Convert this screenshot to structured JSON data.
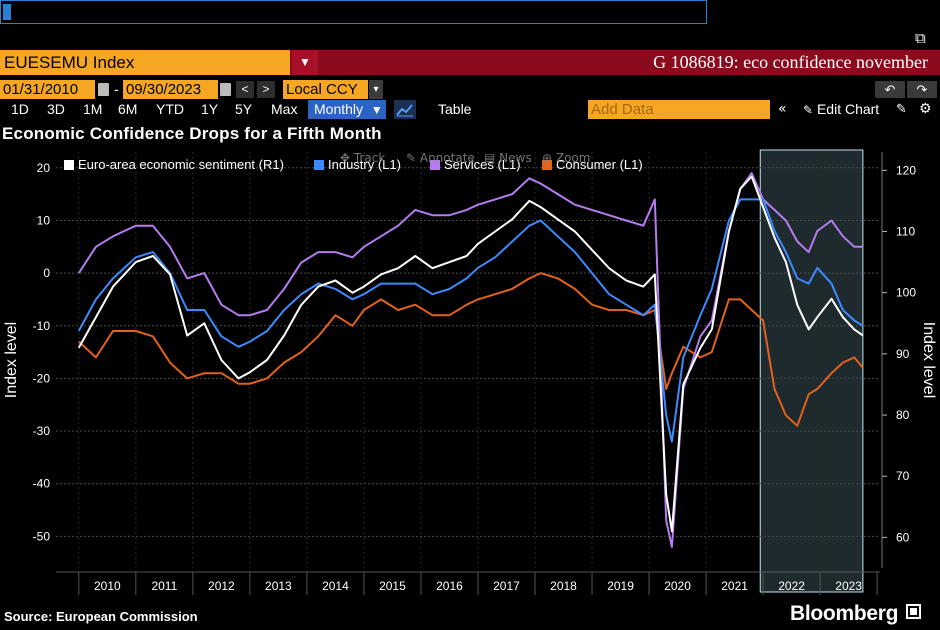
{
  "command_line": {
    "value": ""
  },
  "security": {
    "ticker": "EUESEMU Index",
    "function_title": "G 1086819: eco confidence november"
  },
  "dates": {
    "start": "01/31/2010",
    "separator": "-",
    "end": "09/30/2023",
    "currency": "Local CCY"
  },
  "toolbar": {
    "periods": [
      "1D",
      "3D",
      "1M",
      "6M",
      "YTD",
      "1Y",
      "5Y",
      "Max"
    ],
    "frequency": "Monthly",
    "frequency_arrow": "▼",
    "table_label": "Table",
    "add_data_placeholder": "Add Data",
    "collapse_glyph": "«",
    "edit_chart_label": "Edit Chart"
  },
  "overlay_tools": [
    "Track",
    "Annotate",
    "News",
    "Zoom"
  ],
  "footer": {
    "source": "Source: European Commission",
    "brand": "Bloomberg"
  },
  "chart_data": {
    "type": "line",
    "title": "Economic Confidence Drops for a Fifth Month",
    "ylabel_left": "Index level",
    "ylabel_right": "Index level",
    "ylim_left": [
      -56,
      23
    ],
    "ylim_right": [
      55,
      123
    ],
    "yticks_left": [
      20,
      10,
      0,
      -10,
      -20,
      -30,
      -40,
      -50
    ],
    "yticks_right": [
      120,
      110,
      100,
      90,
      80,
      70,
      60
    ],
    "x_tick_labels": [
      "2010",
      "2011",
      "2012",
      "2013",
      "2014",
      "2015",
      "2016",
      "2017",
      "2018",
      "2019",
      "2020",
      "2021",
      "2022",
      "2023"
    ],
    "x_range": [
      2009.6,
      2024.05
    ],
    "shaded_region": [
      2021.95,
      2023.75
    ],
    "grid": true,
    "legend_position": "top-left",
    "series": [
      {
        "name": "Euro-area economic sentiment (R1)",
        "axis": "right",
        "color": "#ffffff",
        "points": [
          [
            2010.0,
            91
          ],
          [
            2010.3,
            96
          ],
          [
            2010.6,
            101
          ],
          [
            2011.0,
            105
          ],
          [
            2011.3,
            106
          ],
          [
            2011.6,
            103
          ],
          [
            2011.9,
            93
          ],
          [
            2012.2,
            95
          ],
          [
            2012.5,
            89
          ],
          [
            2012.8,
            86
          ],
          [
            2013.0,
            87
          ],
          [
            2013.3,
            89
          ],
          [
            2013.6,
            93
          ],
          [
            2013.9,
            98
          ],
          [
            2014.2,
            101
          ],
          [
            2014.5,
            102
          ],
          [
            2014.8,
            100
          ],
          [
            2015.0,
            101
          ],
          [
            2015.3,
            103
          ],
          [
            2015.6,
            104
          ],
          [
            2015.9,
            106
          ],
          [
            2016.2,
            104
          ],
          [
            2016.5,
            105
          ],
          [
            2016.8,
            106
          ],
          [
            2017.0,
            108
          ],
          [
            2017.3,
            110
          ],
          [
            2017.6,
            112
          ],
          [
            2017.9,
            115
          ],
          [
            2018.1,
            114
          ],
          [
            2018.4,
            112
          ],
          [
            2018.7,
            110
          ],
          [
            2019.0,
            107
          ],
          [
            2019.3,
            104
          ],
          [
            2019.6,
            102
          ],
          [
            2019.9,
            101
          ],
          [
            2020.1,
            103
          ],
          [
            2020.3,
            67
          ],
          [
            2020.4,
            61
          ],
          [
            2020.6,
            85
          ],
          [
            2020.9,
            91
          ],
          [
            2021.1,
            94
          ],
          [
            2021.4,
            110
          ],
          [
            2021.6,
            117
          ],
          [
            2021.8,
            119
          ],
          [
            2022.0,
            114
          ],
          [
            2022.2,
            109
          ],
          [
            2022.4,
            105
          ],
          [
            2022.6,
            98
          ],
          [
            2022.8,
            94
          ],
          [
            2022.95,
            96
          ],
          [
            2023.2,
            99
          ],
          [
            2023.4,
            96
          ],
          [
            2023.6,
            94
          ],
          [
            2023.75,
            93
          ]
        ]
      },
      {
        "name": "Industry (L1)",
        "axis": "left",
        "color": "#3b8bff",
        "points": [
          [
            2010.0,
            -11
          ],
          [
            2010.3,
            -5
          ],
          [
            2010.6,
            -1
          ],
          [
            2011.0,
            3
          ],
          [
            2011.3,
            4
          ],
          [
            2011.6,
            0
          ],
          [
            2011.9,
            -7
          ],
          [
            2012.2,
            -7
          ],
          [
            2012.5,
            -12
          ],
          [
            2012.8,
            -14
          ],
          [
            2013.0,
            -13
          ],
          [
            2013.3,
            -11
          ],
          [
            2013.6,
            -7
          ],
          [
            2013.9,
            -4
          ],
          [
            2014.2,
            -2
          ],
          [
            2014.5,
            -3
          ],
          [
            2014.8,
            -5
          ],
          [
            2015.0,
            -4
          ],
          [
            2015.3,
            -2
          ],
          [
            2015.6,
            -2
          ],
          [
            2015.9,
            -2
          ],
          [
            2016.2,
            -4
          ],
          [
            2016.5,
            -3
          ],
          [
            2016.8,
            -1
          ],
          [
            2017.0,
            1
          ],
          [
            2017.3,
            3
          ],
          [
            2017.6,
            6
          ],
          [
            2017.9,
            9
          ],
          [
            2018.1,
            10
          ],
          [
            2018.4,
            7
          ],
          [
            2018.7,
            4
          ],
          [
            2019.0,
            0
          ],
          [
            2019.3,
            -4
          ],
          [
            2019.6,
            -6
          ],
          [
            2019.9,
            -8
          ],
          [
            2020.1,
            -6
          ],
          [
            2020.3,
            -27
          ],
          [
            2020.4,
            -32
          ],
          [
            2020.6,
            -16
          ],
          [
            2020.9,
            -8
          ],
          [
            2021.1,
            -3
          ],
          [
            2021.4,
            10
          ],
          [
            2021.6,
            14
          ],
          [
            2021.8,
            14
          ],
          [
            2022.0,
            14
          ],
          [
            2022.2,
            8
          ],
          [
            2022.4,
            4
          ],
          [
            2022.6,
            -1
          ],
          [
            2022.8,
            -2
          ],
          [
            2022.95,
            1
          ],
          [
            2023.2,
            -2
          ],
          [
            2023.4,
            -7
          ],
          [
            2023.6,
            -9
          ],
          [
            2023.75,
            -10
          ]
        ]
      },
      {
        "name": "Services (L1)",
        "axis": "left",
        "color": "#b57cf0",
        "points": [
          [
            2010.0,
            0
          ],
          [
            2010.3,
            5
          ],
          [
            2010.6,
            7
          ],
          [
            2011.0,
            9
          ],
          [
            2011.3,
            9
          ],
          [
            2011.6,
            5
          ],
          [
            2011.9,
            -1
          ],
          [
            2012.2,
            0
          ],
          [
            2012.5,
            -6
          ],
          [
            2012.8,
            -8
          ],
          [
            2013.0,
            -8
          ],
          [
            2013.3,
            -7
          ],
          [
            2013.6,
            -3
          ],
          [
            2013.9,
            2
          ],
          [
            2014.2,
            4
          ],
          [
            2014.5,
            4
          ],
          [
            2014.8,
            3
          ],
          [
            2015.0,
            5
          ],
          [
            2015.3,
            7
          ],
          [
            2015.6,
            9
          ],
          [
            2015.9,
            12
          ],
          [
            2016.2,
            11
          ],
          [
            2016.5,
            11
          ],
          [
            2016.8,
            12
          ],
          [
            2017.0,
            13
          ],
          [
            2017.3,
            14
          ],
          [
            2017.6,
            15
          ],
          [
            2017.9,
            18
          ],
          [
            2018.1,
            17
          ],
          [
            2018.4,
            15
          ],
          [
            2018.7,
            13
          ],
          [
            2019.0,
            12
          ],
          [
            2019.3,
            11
          ],
          [
            2019.6,
            10
          ],
          [
            2019.9,
            9
          ],
          [
            2020.1,
            14
          ],
          [
            2020.3,
            -47
          ],
          [
            2020.4,
            -52
          ],
          [
            2020.6,
            -22
          ],
          [
            2020.9,
            -12
          ],
          [
            2021.1,
            -9
          ],
          [
            2021.4,
            8
          ],
          [
            2021.6,
            16
          ],
          [
            2021.8,
            19
          ],
          [
            2022.0,
            14
          ],
          [
            2022.2,
            12
          ],
          [
            2022.4,
            10
          ],
          [
            2022.6,
            6
          ],
          [
            2022.8,
            4
          ],
          [
            2022.95,
            8
          ],
          [
            2023.2,
            10
          ],
          [
            2023.4,
            7
          ],
          [
            2023.6,
            5
          ],
          [
            2023.75,
            5
          ]
        ]
      },
      {
        "name": "Consumer (L1)",
        "axis": "left",
        "color": "#e2621c",
        "points": [
          [
            2010.0,
            -13
          ],
          [
            2010.3,
            -16
          ],
          [
            2010.6,
            -11
          ],
          [
            2011.0,
            -11
          ],
          [
            2011.3,
            -12
          ],
          [
            2011.6,
            -17
          ],
          [
            2011.9,
            -20
          ],
          [
            2012.2,
            -19
          ],
          [
            2012.5,
            -19
          ],
          [
            2012.8,
            -21
          ],
          [
            2013.0,
            -21
          ],
          [
            2013.3,
            -20
          ],
          [
            2013.6,
            -17
          ],
          [
            2013.9,
            -15
          ],
          [
            2014.2,
            -12
          ],
          [
            2014.5,
            -8
          ],
          [
            2014.8,
            -10
          ],
          [
            2015.0,
            -7
          ],
          [
            2015.3,
            -5
          ],
          [
            2015.6,
            -7
          ],
          [
            2015.9,
            -6
          ],
          [
            2016.2,
            -8
          ],
          [
            2016.5,
            -8
          ],
          [
            2016.8,
            -6
          ],
          [
            2017.0,
            -5
          ],
          [
            2017.3,
            -4
          ],
          [
            2017.6,
            -3
          ],
          [
            2017.9,
            -1
          ],
          [
            2018.1,
            0
          ],
          [
            2018.4,
            -1
          ],
          [
            2018.7,
            -3
          ],
          [
            2019.0,
            -6
          ],
          [
            2019.3,
            -7
          ],
          [
            2019.6,
            -7
          ],
          [
            2019.9,
            -8
          ],
          [
            2020.1,
            -7
          ],
          [
            2020.3,
            -22
          ],
          [
            2020.4,
            -19
          ],
          [
            2020.6,
            -14
          ],
          [
            2020.9,
            -16
          ],
          [
            2021.1,
            -15
          ],
          [
            2021.4,
            -5
          ],
          [
            2021.6,
            -5
          ],
          [
            2021.8,
            -7
          ],
          [
            2022.0,
            -9
          ],
          [
            2022.2,
            -22
          ],
          [
            2022.4,
            -27
          ],
          [
            2022.6,
            -29
          ],
          [
            2022.8,
            -23
          ],
          [
            2022.95,
            -22
          ],
          [
            2023.2,
            -19
          ],
          [
            2023.4,
            -17
          ],
          [
            2023.6,
            -16
          ],
          [
            2023.75,
            -18
          ]
        ]
      }
    ]
  }
}
